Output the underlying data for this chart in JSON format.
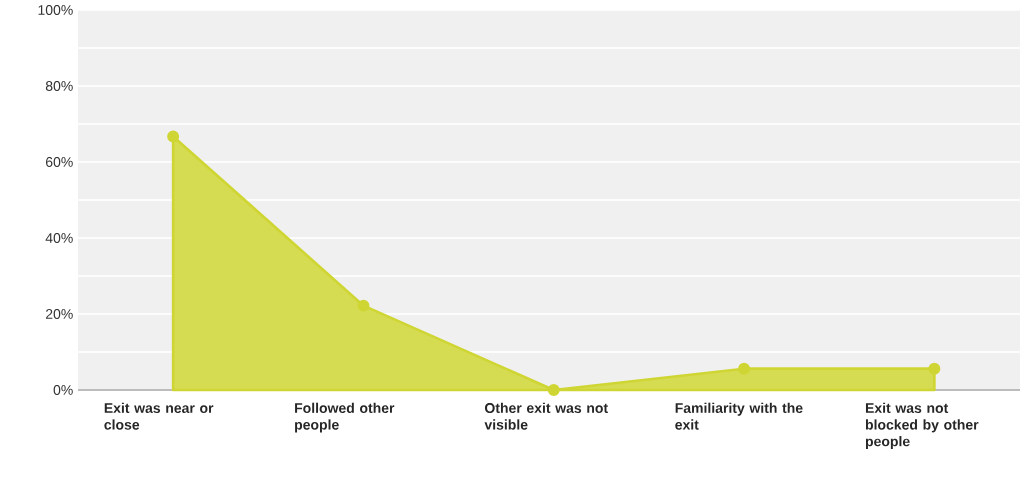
{
  "chart_data": {
    "type": "area",
    "categories": [
      "Exit was near or close",
      "Followed other people",
      "Other exit was not visible",
      "Familiarity with the exit",
      "Exit was not blocked by other people"
    ],
    "values": [
      66.7,
      22.2,
      0,
      5.6,
      5.6
    ],
    "color": "#cfd634",
    "ylim": [
      0,
      100
    ],
    "yticks": [
      {
        "value": 0,
        "label": "0%"
      },
      {
        "value": 10,
        "label": null
      },
      {
        "value": 20,
        "label": "20%"
      },
      {
        "value": 30,
        "label": null
      },
      {
        "value": 40,
        "label": "40%"
      },
      {
        "value": 50,
        "label": null
      },
      {
        "value": 60,
        "label": "60%"
      },
      {
        "value": 70,
        "label": null
      },
      {
        "value": 80,
        "label": "80%"
      },
      {
        "value": 90,
        "label": null
      },
      {
        "value": 100,
        "label": "100%"
      }
    ],
    "grid": "y",
    "marker": "circle",
    "line_style": "solid"
  }
}
